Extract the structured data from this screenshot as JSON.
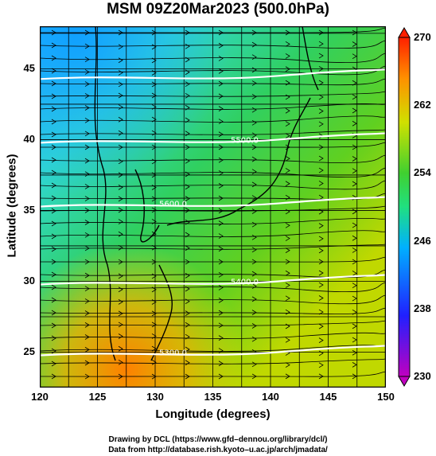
{
  "title": "MSM 09Z20Mar2023 (500.0hPa)",
  "chart_data": {
    "type": "heatmap",
    "map_kind": "temperature shading with streamlines and contours",
    "xlabel": "Longitude (degrees)",
    "ylabel": "Latitude  (degrees)",
    "xlim": [
      120,
      150
    ],
    "ylim": [
      22.5,
      48
    ],
    "x_ticks": [
      "120",
      "125",
      "130",
      "135",
      "140",
      "145",
      "150"
    ],
    "y_ticks": [
      "25",
      "30",
      "35",
      "40",
      "45"
    ],
    "colorbar": {
      "ticks": [
        "270",
        "262",
        "254",
        "246",
        "238",
        "230"
      ],
      "range": [
        230,
        270
      ],
      "colors": [
        "#c000c0",
        "#2020ff",
        "#00b0ff",
        "#20e080",
        "#40d030",
        "#d0e000",
        "#ff9000",
        "#ff2000"
      ]
    },
    "contours": [
      {
        "label": "5300.0",
        "lat": 25.0
      },
      {
        "label": "5400.0",
        "lat": 30.0
      },
      {
        "label": "5600.0",
        "lat": 35.5
      },
      {
        "label": "5500.0",
        "lat": 40.0
      },
      {
        "label": "",
        "lat": 44.5
      }
    ],
    "grid": true
  },
  "credits": {
    "line1": "Drawing by DCL (https://www.gfd–dennou.org/library/dcl/)",
    "line2": "Data from http://database.rish.kyoto–u.ac.jp/arch/jmadata/"
  }
}
